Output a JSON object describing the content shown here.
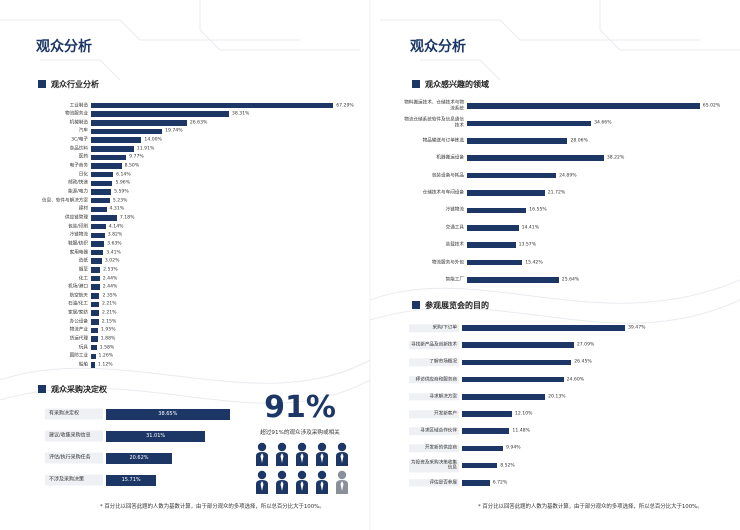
{
  "pages": [
    {
      "title": "观众分析",
      "note": "* 百分比以回答此题的人数为基数计算，由于部分观众的多项选择，所以总百分比大于100%。"
    },
    {
      "title": "观众分析",
      "note": "* 百分比以回答此题的人数为基数计算，由于部分观众的多项选择，所以总百分比大于100%。"
    }
  ],
  "stat": {
    "value": 91,
    "label": "91%",
    "caption": "超过91%的观众涉及采购或相关"
  },
  "chart_data": [
    {
      "type": "bar",
      "orientation": "horizontal",
      "title": "观众行业分析",
      "color": "#1c3766",
      "categories": [
        "工业制造",
        "物流服务业",
        "机械制造",
        "汽车",
        "3C/电子",
        "食品饮料",
        "医药",
        "电子商务",
        "日化",
        "邮政/快递",
        "能源/电力",
        "信息、软件与解决方案",
        "建材",
        "供应链管理",
        "包装/印刷",
        "冷链物流",
        "鞋服/纺织",
        "家用电器",
        "造纸",
        "烟草",
        "化工",
        "机场/港口",
        "航空航天",
        "石油/化工",
        "家居/家纺",
        "办公设备",
        "物流产业",
        "货运代理",
        "玩具",
        "国防工业",
        "船舶"
      ],
      "values": [
        67.29,
        38.31,
        26.63,
        19.74,
        14.0,
        11.91,
        9.77,
        8.5,
        6.14,
        5.96,
        5.59,
        5.23,
        4.31,
        7.18,
        4.14,
        3.82,
        3.63,
        3.41,
        3.02,
        2.53,
        2.44,
        2.44,
        2.35,
        2.21,
        2.21,
        2.15,
        1.95,
        1.88,
        1.58,
        1.26,
        1.12
      ],
      "value_labels": [
        "67.29%",
        "38.31%",
        "26.63%",
        "19.74%",
        "14.00%",
        "11.91%",
        "9.77%",
        "8.50%",
        "6.14%",
        "5.96%",
        "5.59%",
        "5.23%",
        "4.31%",
        "7.18%",
        "4.14%",
        "3.82%",
        "3.63%",
        "3.41%",
        "3.02%",
        "2.53%",
        "2.44%",
        "2.44%",
        "2.35%",
        "2.21%",
        "2.21%",
        "2.15%",
        "1.95%",
        "1.88%",
        "1.58%",
        "1.26%",
        "1.12%"
      ]
    },
    {
      "type": "bar",
      "orientation": "horizontal",
      "title": "观众采购决定权",
      "color": "#1c3766",
      "categories": [
        "有采购决定权",
        "建议/收集采购信息",
        "评估/执行采购任务",
        "不涉及采购决策"
      ],
      "values": [
        38.65,
        31.01,
        20.62,
        15.71
      ],
      "value_labels": [
        "38.65%",
        "31.01%",
        "20.62%",
        "15.71%"
      ]
    },
    {
      "type": "bar",
      "orientation": "horizontal",
      "title": "观众感兴趣的领域",
      "color": "#1c3766",
      "categories": [
        "物料搬运技术、仓储技术与物流系统",
        "物流仓储系统软件及信息通信技术",
        "物品输送与订单拣选",
        "机器搬运设备",
        "包装设备与耗品",
        "仓储技术与车间设备",
        "冷链物流",
        "交通工具",
        "装载技术",
        "物流服务与外包",
        "智能工厂"
      ],
      "values": [
        65.02,
        34.66,
        28.06,
        38.22,
        24.89,
        21.72,
        16.55,
        14.41,
        13.57,
        15.42,
        25.64
      ],
      "value_labels": [
        "65.02%",
        "34.66%",
        "28.06%",
        "38.22%",
        "24.89%",
        "21.72%",
        "16.55%",
        "14.41%",
        "13.57%",
        "15.42%",
        "25.64%"
      ]
    },
    {
      "type": "bar",
      "orientation": "horizontal",
      "title": "参观展览会的目的",
      "color": "#1c3766",
      "categories": [
        "采购/下订单",
        "寻找新产品及创新技术",
        "了解市场概况",
        "拜访供应商和服务商",
        "寻求解决方案",
        "开发新客户",
        "寻求区域合作伙伴",
        "开发新的供应商",
        "为投资及采购决策收集信息",
        "评估是否参展"
      ],
      "values": [
        39.47,
        27.09,
        26.45,
        24.6,
        20.13,
        12.1,
        11.48,
        9.94,
        8.52,
        6.72
      ],
      "value_labels": [
        "39.47%",
        "27.09%",
        "26.45%",
        "24.60%",
        "20.13%",
        "12.10%",
        "11.48%",
        "9.94%",
        "8.52%",
        "6.72%"
      ]
    }
  ]
}
